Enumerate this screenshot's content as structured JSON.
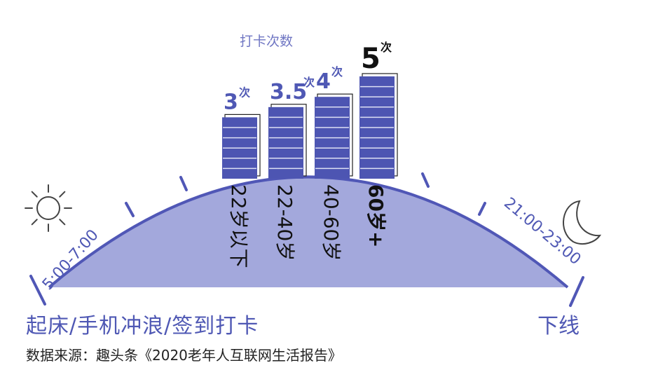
{
  "chart_data": {
    "type": "bar",
    "title": "打卡次数",
    "unit": "次",
    "categories": [
      "22岁以下",
      "22-40岁",
      "40-60岁",
      "60岁+"
    ],
    "values": [
      3,
      3.5,
      4,
      5
    ],
    "value_labels": [
      "3",
      "3.5",
      "4",
      "5"
    ],
    "highlight_index": 3,
    "ylim": [
      0,
      5
    ],
    "time_start": "5:00-7:00",
    "time_end": "21:00-23:00",
    "colors": {
      "bar_fill": "#4d55b2",
      "bar_line": "#dde0f4",
      "hill_fill": "#a3a8dc",
      "hill_stroke": "#5057b6",
      "label_blue": "#4f58b4",
      "highlight": "#111111",
      "icon": "#444444"
    }
  },
  "labels": {
    "morning": "起床/手机冲浪/签到打卡",
    "night": "下线",
    "source": "数据来源：趣头条《2020老年人互联网生活报告》"
  },
  "icons": {
    "morning": "sun-icon",
    "night": "moon-icon"
  }
}
